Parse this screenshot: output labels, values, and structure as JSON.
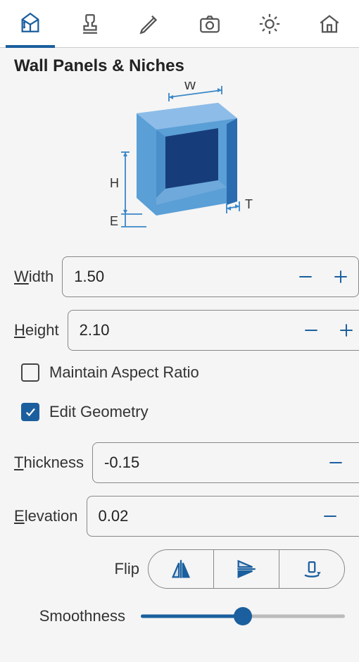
{
  "colors": {
    "accent": "#1b5f9e",
    "panel_bg": "#f5f5f5",
    "border": "#888888",
    "text": "#333333",
    "cube_light": "#8dbce8",
    "cube_mid": "#5a9fd6",
    "cube_dark": "#2b6bb0",
    "cube_inset": "#163d7a",
    "dim_line": "#3a87c8"
  },
  "title": "Wall Panels & Niches",
  "diagram": {
    "labels": {
      "W": "W",
      "H": "H",
      "E": "E",
      "T": "T"
    }
  },
  "fields": {
    "width": {
      "label": "Width",
      "hotkey": "W",
      "value": "1.50"
    },
    "height": {
      "label": "Height",
      "hotkey": "H",
      "value": "2.10"
    },
    "thickness": {
      "label": "Thickness",
      "hotkey": "T",
      "value": "-0.15"
    },
    "elevation": {
      "label": "Elevation",
      "hotkey": "E",
      "value": "0.02"
    }
  },
  "checks": {
    "aspect": {
      "label": "Maintain Aspect Ratio",
      "checked": false
    },
    "editgeom": {
      "label": "Edit Geometry",
      "checked": true
    }
  },
  "flip": {
    "label": "Flip"
  },
  "smoothness": {
    "label": "Smoothness",
    "value": 0.5
  }
}
